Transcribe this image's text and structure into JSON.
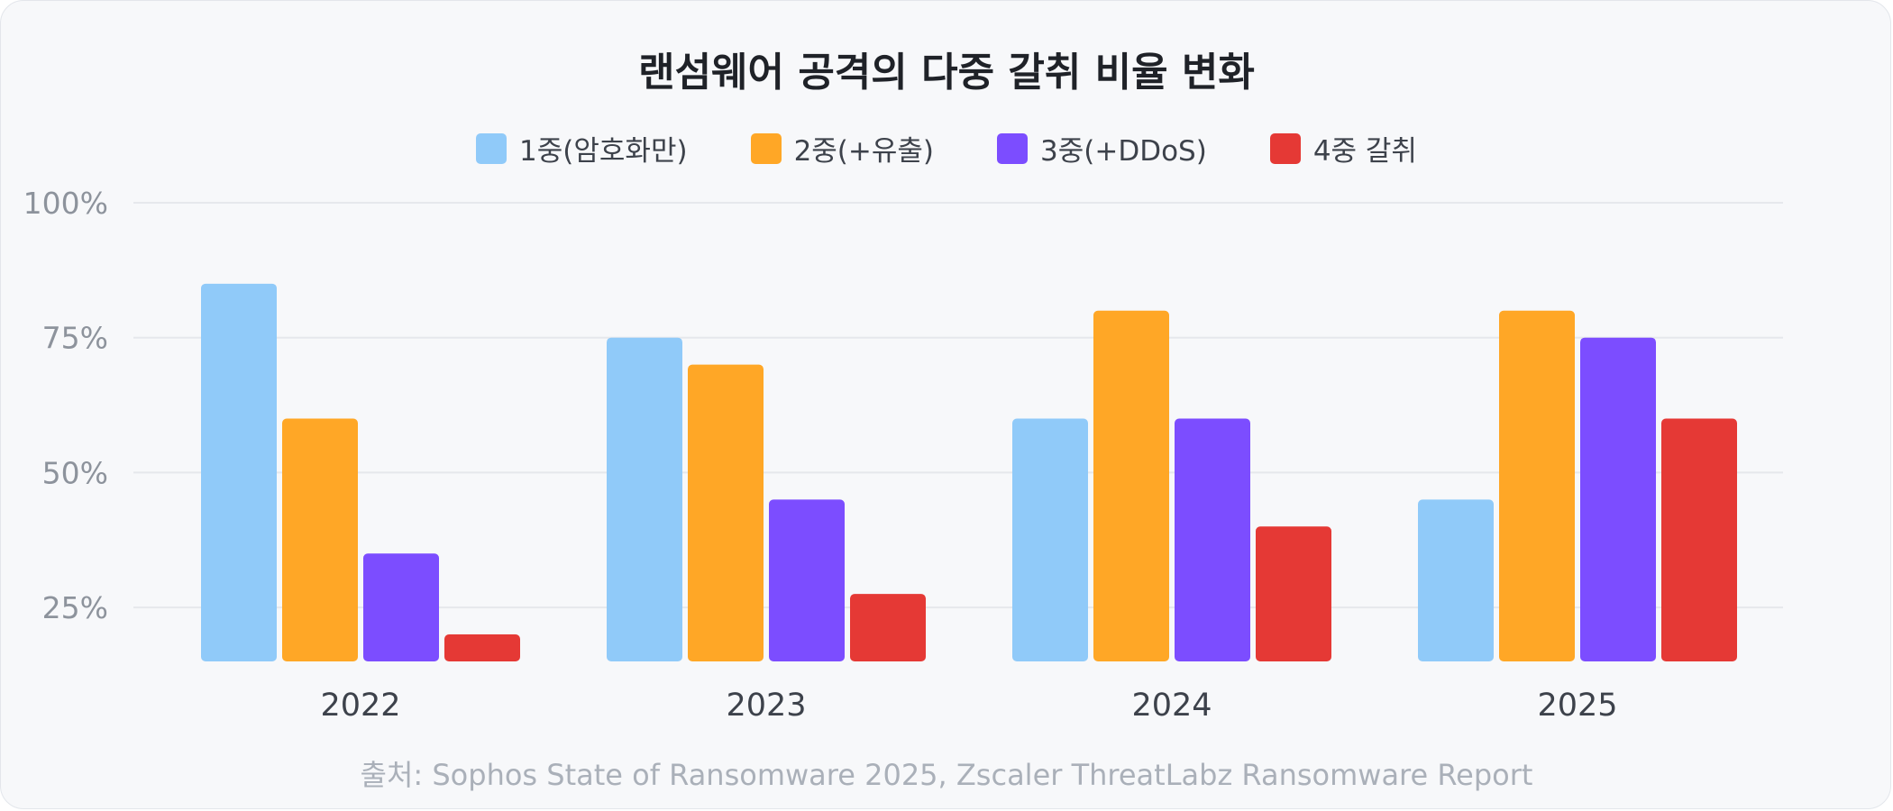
{
  "chart_data": {
    "type": "bar",
    "title": "랜섬웨어 공격의 다중 갈취 비율 변화",
    "source": "출처: Sophos State of Ransomware 2025, Zscaler ThreatLabz Ransomware Report",
    "categories": [
      "2022",
      "2023",
      "2024",
      "2025"
    ],
    "series": [
      {
        "name": "1중(암호화만)",
        "color": "#90caf9",
        "values": [
          85,
          75,
          60,
          45
        ]
      },
      {
        "name": "2중(+유출)",
        "color": "#ffa726",
        "values": [
          60,
          70,
          80,
          80
        ]
      },
      {
        "name": "3중(+DDoS)",
        "color": "#7c4dff",
        "values": [
          35,
          45,
          60,
          75
        ]
      },
      {
        "name": "4중 갈취",
        "color": "#e53935",
        "values": [
          20,
          27.5,
          40,
          60
        ]
      }
    ],
    "yticks": [
      "100%",
      "75%",
      "50%",
      "25%"
    ],
    "ytick_values": [
      100,
      75,
      50,
      25
    ],
    "ylim": [
      15,
      100
    ],
    "grid": true,
    "legend_position": "top-center"
  }
}
